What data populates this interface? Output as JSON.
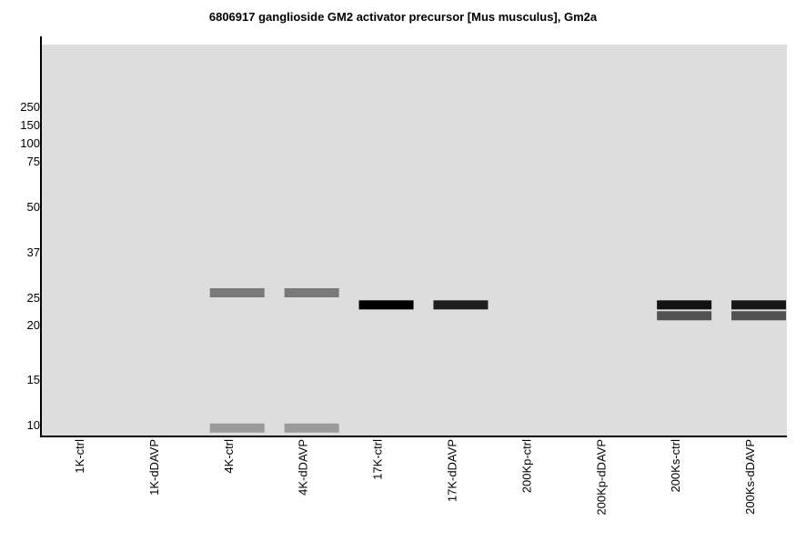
{
  "chart_data": {
    "type": "heatmap",
    "title": "6806917 ganglioside GM2 activator precursor [Mus musculus], Gm2a",
    "xlabel": "",
    "ylabel": "",
    "y_scale": "log",
    "y_ticks": [
      "250",
      "150",
      "100",
      "75",
      "50",
      "37",
      "25",
      "20",
      "15",
      "10"
    ],
    "y_tick_values": [
      250,
      150,
      100,
      75,
      50,
      37,
      25,
      20,
      15,
      10
    ],
    "lanes": [
      "1K-ctrl",
      "1K-dDAVP",
      "4K-ctrl",
      "4K-dDAVP",
      "17K-ctrl",
      "17K-dDAVP",
      "200Kp-ctrl",
      "200Kp-dDAVP",
      "200Ks-ctrl",
      "200Ks-dDAVP"
    ],
    "bands": [
      {
        "lane": "4K-ctrl",
        "kDa": 26,
        "intensity": 0.45
      },
      {
        "lane": "4K-ctrl",
        "kDa": 9.7,
        "intensity": 0.3
      },
      {
        "lane": "4K-dDAVP",
        "kDa": 26,
        "intensity": 0.45
      },
      {
        "lane": "4K-dDAVP",
        "kDa": 9.7,
        "intensity": 0.3
      },
      {
        "lane": "17K-ctrl",
        "kDa": 23.5,
        "intensity": 1.0
      },
      {
        "lane": "17K-dDAVP",
        "kDa": 23.5,
        "intensity": 0.87
      },
      {
        "lane": "200Ks-ctrl",
        "kDa": 23.5,
        "intensity": 0.92
      },
      {
        "lane": "200Ks-ctrl",
        "kDa": 21.5,
        "intensity": 0.63
      },
      {
        "lane": "200Ks-dDAVP",
        "kDa": 23.5,
        "intensity": 0.89
      },
      {
        "lane": "200Ks-dDAVP",
        "kDa": 21.5,
        "intensity": 0.63
      }
    ],
    "grid": false,
    "legend": "none"
  }
}
